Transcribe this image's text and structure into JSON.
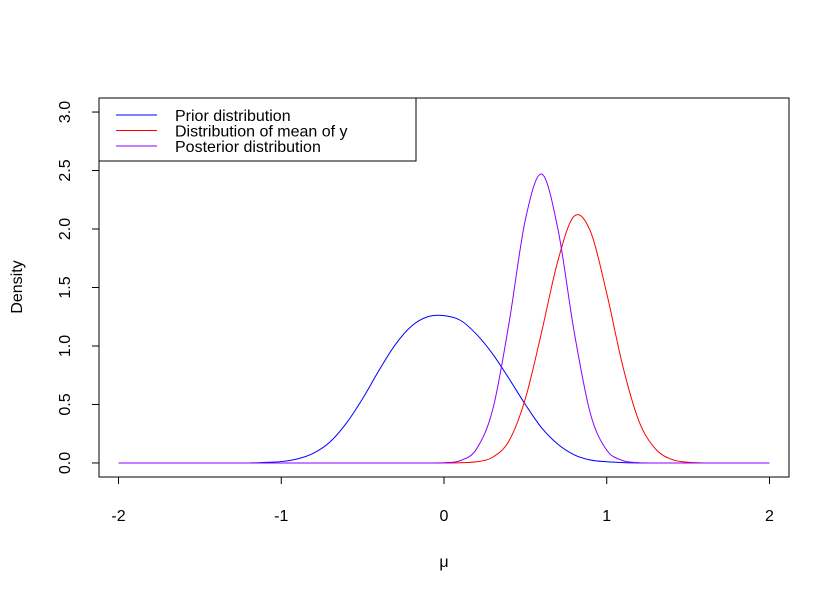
{
  "chart_data": {
    "type": "line",
    "xlabel": "μ",
    "ylabel": "Density",
    "xlim": [
      -2.12,
      2.12
    ],
    "ylim": [
      -0.12,
      3.12
    ],
    "x_ticks": [
      -2,
      -1,
      0,
      1,
      2
    ],
    "x_tick_labels": [
      "-2",
      "-1",
      "0",
      "1",
      "2"
    ],
    "y_ticks": [
      0,
      0.5,
      1,
      1.5,
      2,
      2.5,
      3
    ],
    "y_tick_labels": [
      "0.0",
      "0.5",
      "1.0",
      "1.5",
      "2.0",
      "2.5",
      "3.0"
    ],
    "grid": false,
    "legend_position": "top-left",
    "x": [
      -2.0,
      -1.9,
      -1.8,
      -1.7,
      -1.6,
      -1.5,
      -1.4,
      -1.3,
      -1.2,
      -1.1,
      -1.0,
      -0.9,
      -0.8,
      -0.7,
      -0.6,
      -0.5,
      -0.4,
      -0.3,
      -0.2,
      -0.1,
      0.0,
      0.1,
      0.2,
      0.3,
      0.4,
      0.5,
      0.6,
      0.7,
      0.8,
      0.9,
      1.0,
      1.1,
      1.2,
      1.3,
      1.4,
      1.5,
      1.6,
      1.7,
      1.8,
      1.9,
      2.0
    ],
    "series": [
      {
        "name": "Prior distribution",
        "color": "#0000ff",
        "values": [
          0.0,
          0.0,
          0.0,
          0.0,
          0.0,
          0.0,
          0.0,
          0.0,
          0.0,
          0.005,
          0.012,
          0.035,
          0.085,
          0.18,
          0.34,
          0.55,
          0.79,
          1.01,
          1.17,
          1.25,
          1.26,
          1.22,
          1.1,
          0.93,
          0.72,
          0.5,
          0.3,
          0.16,
          0.07,
          0.025,
          0.01,
          0.003,
          0.0,
          0.0,
          0.0,
          0.0,
          0.0,
          0.0,
          0.0,
          0.0,
          0.0
        ]
      },
      {
        "name": "Distribution of mean of y",
        "color": "#ff0000",
        "values": [
          0.0,
          0.0,
          0.0,
          0.0,
          0.0,
          0.0,
          0.0,
          0.0,
          0.0,
          0.0,
          0.0,
          0.0,
          0.0,
          0.0,
          0.0,
          0.0,
          0.0,
          0.0,
          0.0,
          0.0,
          0.0,
          0.002,
          0.01,
          0.05,
          0.19,
          0.55,
          1.12,
          1.73,
          2.11,
          1.98,
          1.45,
          0.82,
          0.35,
          0.12,
          0.03,
          0.006,
          0.0,
          0.0,
          0.0,
          0.0,
          0.0
        ]
      },
      {
        "name": "Posterior distribution",
        "color": "#8b00ff",
        "values": [
          0.0,
          0.0,
          0.0,
          0.0,
          0.0,
          0.0,
          0.0,
          0.0,
          0.0,
          0.0,
          0.0,
          0.0,
          0.0,
          0.0,
          0.0,
          0.0,
          0.0,
          0.0,
          0.0,
          0.0,
          0.002,
          0.02,
          0.12,
          0.46,
          1.2,
          2.08,
          2.47,
          2.0,
          1.12,
          0.42,
          0.11,
          0.02,
          0.002,
          0.0,
          0.0,
          0.0,
          0.0,
          0.0,
          0.0,
          0.0,
          0.0
        ]
      }
    ]
  }
}
